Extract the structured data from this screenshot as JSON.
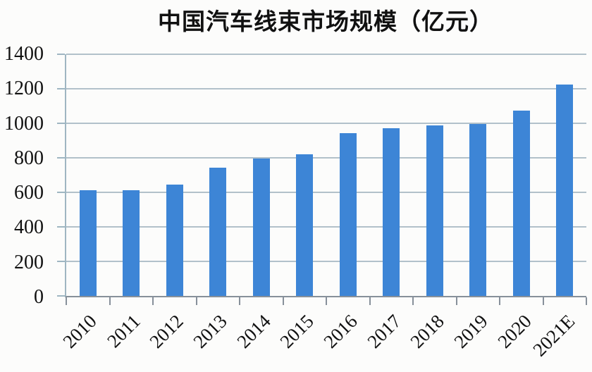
{
  "page": {
    "background": "#fcfcfb"
  },
  "colors": {
    "bar": "#3d85d6",
    "gridline": "#b2c1ca",
    "y_axis_line": "#9fb6c2",
    "x_axis_line": "#87909a",
    "text": "#111111"
  },
  "chart_data": {
    "type": "bar",
    "title": "中国汽车线束市场规模（亿元）",
    "categories": [
      "2010",
      "2011",
      "2012",
      "2013",
      "2014",
      "2015",
      "2016",
      "2017",
      "2018",
      "2019",
      "2020",
      "2021E"
    ],
    "values": [
      611,
      612,
      646,
      741,
      796,
      819,
      941,
      970,
      986,
      995,
      1075,
      1226
    ],
    "xlabel": "",
    "ylabel": "",
    "ylim": [
      0,
      1400
    ],
    "ytick_step": 200,
    "yticks": [
      0,
      200,
      400,
      600,
      800,
      1000,
      1200,
      1400
    ],
    "grid": "horizontal",
    "legend_position": "none",
    "x_label_rotation_deg": -45,
    "bar_width_fraction": 0.39
  }
}
